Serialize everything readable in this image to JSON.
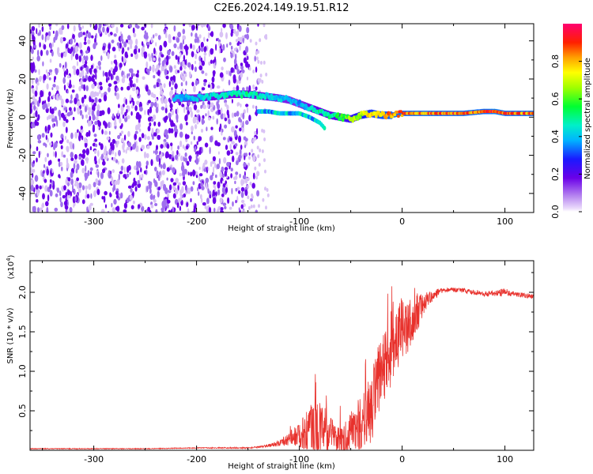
{
  "figure": {
    "title": "C2E6.2024.149.19.51.R12"
  },
  "colors": {
    "snr_line": "#e8312c",
    "axis": "#000000",
    "spec_dark": "#6a00e8",
    "spec_light": "#d9c2f5"
  },
  "chart_data": [
    {
      "type": "heatmap",
      "name": "spectrogram",
      "xlabel": "Height of straight line (km)",
      "ylabel": "Frequency (Hz)",
      "xlim": [
        -362,
        128
      ],
      "ylim": [
        -50,
        49
      ],
      "xticks": [
        -300,
        -200,
        -100,
        0,
        100
      ],
      "xtick_labels": [
        "-300",
        "-200",
        "-100",
        "0",
        "100"
      ],
      "yticks": [
        -40,
        -20,
        0,
        20,
        40
      ],
      "ytick_labels": [
        "-40",
        "-20",
        "0",
        "20",
        "40"
      ],
      "noise_region_x": [
        -362,
        -150
      ],
      "ridge": {
        "x": [
          -222,
          -200,
          -180,
          -165,
          -150,
          -135,
          -120,
          -110,
          -100,
          -90,
          -80,
          -70,
          -60,
          -50,
          -40,
          -30,
          -20,
          -10,
          0,
          20,
          40,
          60,
          80,
          90,
          100,
          128
        ],
        "frequency": [
          10,
          10,
          11,
          12,
          12,
          11,
          10,
          9,
          7,
          5,
          3,
          1,
          0,
          -1,
          1,
          2,
          1,
          1,
          2,
          2,
          2,
          2,
          3,
          3,
          2,
          2
        ],
        "amplitude": [
          0.4,
          0.45,
          0.5,
          0.5,
          0.55,
          0.5,
          0.45,
          0.45,
          0.4,
          0.5,
          0.55,
          0.55,
          0.6,
          0.7,
          0.8,
          0.85,
          0.9,
          0.95,
          0.95,
          0.95,
          0.95,
          0.95,
          0.95,
          1.0,
          0.95,
          0.95
        ]
      },
      "secondary_ridge": {
        "x": [
          -140,
          -130,
          -120,
          -110,
          -100,
          -90,
          -80,
          -75
        ],
        "frequency": [
          3,
          3,
          2,
          2,
          2,
          0,
          -3,
          -6
        ]
      },
      "colorbar": {
        "label": "Normalized spectral amplitude",
        "range": [
          0.0,
          1.0
        ],
        "ticks": [
          0.0,
          0.2,
          0.4,
          0.6,
          0.8
        ],
        "tick_labels": [
          "0.0",
          "0.2",
          "0.4",
          "0.6",
          "0.8"
        ]
      }
    },
    {
      "type": "line",
      "name": "snr",
      "xlabel": "Height of straight line (km)",
      "ylabel": "SNR (10 * v/v)",
      "yscale_label": "(x10",
      "yscale_exp": "4",
      "xlim": [
        -362,
        128
      ],
      "ylim": [
        0,
        2.4
      ],
      "xticks": [
        -300,
        -200,
        -100,
        0,
        100
      ],
      "xtick_labels": [
        "-300",
        "-200",
        "-100",
        "0",
        "100"
      ],
      "yticks": [
        0.5,
        1.0,
        1.5,
        2.0
      ],
      "ytick_labels": [
        "0.5",
        "1.0",
        "1.5",
        "2.0"
      ],
      "series": [
        {
          "name": "SNR",
          "x": [
            -362,
            -300,
            -250,
            -200,
            -150,
            -140,
            -130,
            -120,
            -110,
            -100,
            -92,
            -85,
            -80,
            -75,
            -70,
            -65,
            -60,
            -55,
            -50,
            -45,
            -40,
            -35,
            -30,
            -25,
            -20,
            -15,
            -10,
            -5,
            0,
            5,
            10,
            15,
            20,
            25,
            30,
            35,
            40,
            50,
            60,
            70,
            80,
            90,
            100,
            110,
            120,
            128
          ],
          "y": [
            0.02,
            0.02,
            0.02,
            0.03,
            0.03,
            0.04,
            0.06,
            0.09,
            0.14,
            0.2,
            0.25,
            0.3,
            0.28,
            0.25,
            0.2,
            0.15,
            0.12,
            0.16,
            0.25,
            0.3,
            0.35,
            0.4,
            0.55,
            0.75,
            0.95,
            1.1,
            1.3,
            1.45,
            1.55,
            1.5,
            1.6,
            1.75,
            1.85,
            1.9,
            1.95,
            2.0,
            2.02,
            2.03,
            2.02,
            2.0,
            1.98,
            1.99,
            2.0,
            1.98,
            1.96,
            1.94
          ],
          "noise_amplitude": [
            0.005,
            0.005,
            0.005,
            0.005,
            0.008,
            0.01,
            0.02,
            0.04,
            0.08,
            0.15,
            0.3,
            0.4,
            0.35,
            0.3,
            0.25,
            0.22,
            0.2,
            0.22,
            0.25,
            0.3,
            0.35,
            0.4,
            0.45,
            0.5,
            0.55,
            0.5,
            0.5,
            0.45,
            0.4,
            0.35,
            0.35,
            0.25,
            0.15,
            0.1,
            0.06,
            0.05,
            0.03,
            0.03,
            0.03,
            0.03,
            0.03,
            0.04,
            0.05,
            0.03,
            0.03,
            0.03
          ]
        }
      ]
    }
  ]
}
